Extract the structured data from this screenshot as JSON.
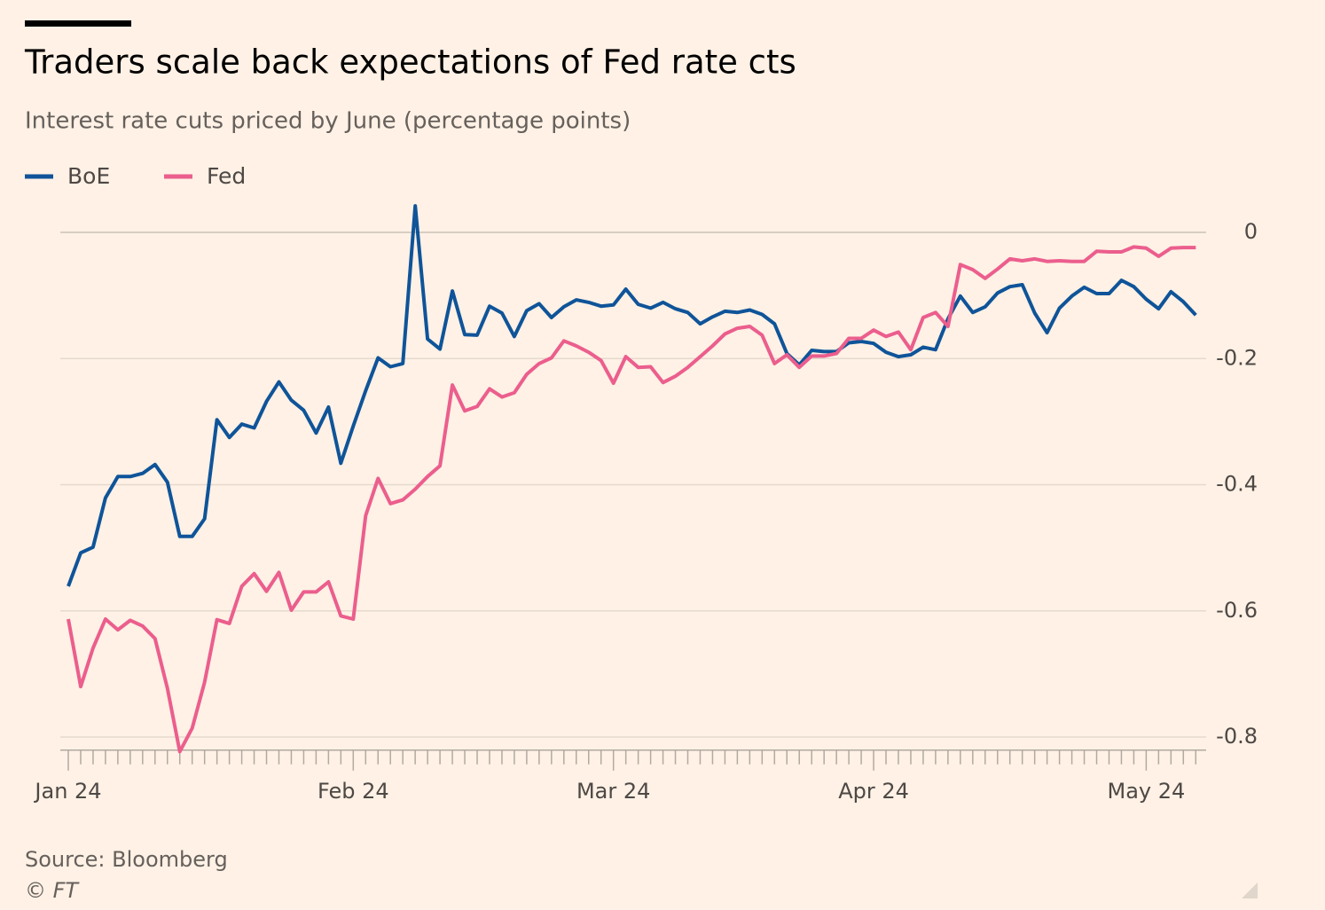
{
  "chart_data": {
    "type": "line",
    "title": "Traders scale back expectations of Fed rate cts",
    "subtitle": "Interest rate cuts priced by June (percentage points)",
    "source": "Source: Bloomberg",
    "credit": "© FT",
    "categories": [
      "Jan 24",
      null,
      null,
      null,
      null,
      null,
      null,
      null,
      null,
      null,
      null,
      null,
      null,
      null,
      null,
      null,
      null,
      null,
      null,
      null,
      null,
      null,
      null,
      "Feb 24",
      null,
      null,
      null,
      null,
      null,
      null,
      null,
      null,
      null,
      null,
      null,
      null,
      null,
      null,
      null,
      null,
      null,
      null,
      null,
      null,
      "Mar 24",
      null,
      null,
      null,
      null,
      null,
      null,
      null,
      null,
      null,
      null,
      null,
      null,
      null,
      null,
      null,
      null,
      null,
      null,
      null,
      null,
      "Apr 24",
      null,
      null,
      null,
      null,
      null,
      null,
      null,
      null,
      null,
      null,
      null,
      null,
      null,
      null,
      null,
      null,
      null,
      null,
      null,
      null,
      null,
      "May 24",
      null,
      null,
      null,
      null
    ],
    "series": [
      {
        "name": "BoE",
        "color": "#0f5499",
        "values": [
          -0.561,
          -0.508,
          -0.499,
          -0.421,
          -0.387,
          -0.387,
          -0.382,
          -0.368,
          -0.396,
          -0.482,
          -0.482,
          -0.454,
          -0.297,
          -0.325,
          -0.304,
          -0.31,
          -0.268,
          -0.237,
          -0.266,
          -0.282,
          -0.318,
          -0.277,
          -0.366,
          -0.307,
          -0.251,
          -0.199,
          -0.213,
          -0.208,
          0.042,
          -0.169,
          -0.185,
          -0.093,
          -0.162,
          -0.163,
          -0.117,
          -0.128,
          -0.165,
          -0.124,
          -0.113,
          -0.135,
          -0.118,
          -0.107,
          -0.111,
          -0.117,
          -0.115,
          -0.09,
          -0.114,
          -0.12,
          -0.111,
          -0.121,
          -0.127,
          -0.145,
          -0.134,
          -0.125,
          -0.127,
          -0.123,
          -0.13,
          -0.145,
          -0.192,
          -0.21,
          -0.187,
          -0.189,
          -0.189,
          -0.175,
          -0.173,
          -0.176,
          -0.19,
          -0.197,
          -0.194,
          -0.182,
          -0.186,
          -0.137,
          -0.101,
          -0.127,
          -0.118,
          -0.096,
          -0.086,
          -0.083,
          -0.128,
          -0.159,
          -0.12,
          -0.101,
          -0.087,
          -0.097,
          -0.097,
          -0.076,
          -0.086,
          -0.106,
          -0.121,
          -0.094,
          -0.11,
          -0.131
        ]
      },
      {
        "name": "Fed",
        "color": "#eb5e8d",
        "values": [
          -0.613,
          -0.72,
          -0.659,
          -0.613,
          -0.63,
          -0.615,
          -0.624,
          -0.644,
          -0.723,
          -0.823,
          -0.786,
          -0.713,
          -0.614,
          -0.62,
          -0.561,
          -0.541,
          -0.569,
          -0.539,
          -0.599,
          -0.57,
          -0.57,
          -0.554,
          -0.608,
          -0.613,
          -0.449,
          -0.39,
          -0.43,
          -0.424,
          -0.407,
          -0.387,
          -0.37,
          -0.242,
          -0.283,
          -0.276,
          -0.248,
          -0.261,
          -0.254,
          -0.225,
          -0.208,
          -0.199,
          -0.172,
          -0.18,
          -0.19,
          -0.203,
          -0.239,
          -0.197,
          -0.214,
          -0.213,
          -0.238,
          -0.228,
          -0.214,
          -0.197,
          -0.18,
          -0.161,
          -0.152,
          -0.149,
          -0.163,
          -0.208,
          -0.194,
          -0.214,
          -0.196,
          -0.196,
          -0.192,
          -0.168,
          -0.168,
          -0.155,
          -0.165,
          -0.158,
          -0.186,
          -0.135,
          -0.127,
          -0.149,
          -0.051,
          -0.059,
          -0.073,
          -0.058,
          -0.042,
          -0.045,
          -0.042,
          -0.046,
          -0.045,
          -0.046,
          -0.046,
          -0.03,
          -0.031,
          -0.031,
          -0.023,
          -0.025,
          -0.038,
          -0.025,
          -0.024,
          -0.024
        ]
      }
    ],
    "ylim": [
      -0.825,
      0.06
    ],
    "yticks": [
      0,
      -0.2,
      -0.4,
      -0.6,
      -0.8
    ],
    "grid": true,
    "legend": "top-left"
  }
}
